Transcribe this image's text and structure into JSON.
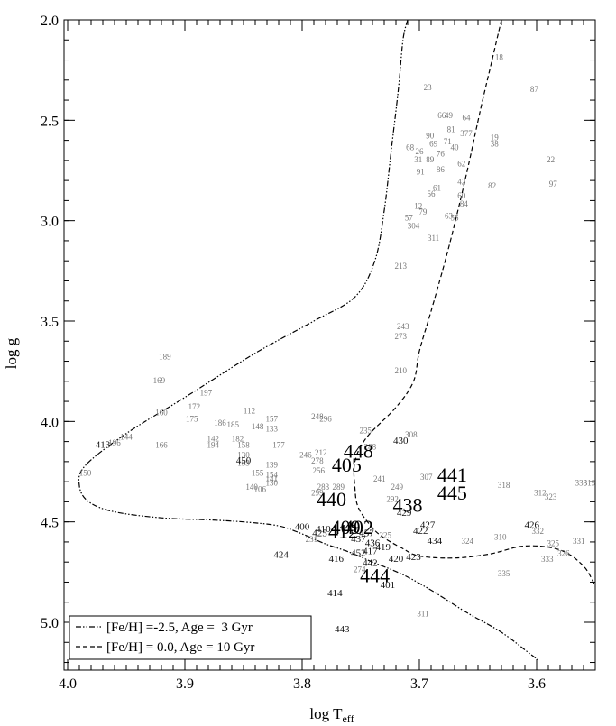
{
  "chart_data": {
    "type": "scatter",
    "xlabel_main": "log T",
    "xlabel_sub": "eff",
    "ylabel": "log g",
    "xlim": [
      4.0,
      3.55
    ],
    "ylim": [
      2.0,
      5.2
    ],
    "x_ticks": [
      "4.0",
      "3.9",
      "3.8",
      "3.7",
      "3.6"
    ],
    "x_tick_values": [
      4.0,
      3.9,
      3.8,
      3.7,
      3.6
    ],
    "y_ticks": [
      "2.0",
      "2.5",
      "3.0",
      "3.5",
      "4.0",
      "4.5",
      "5.0"
    ],
    "y_tick_values": [
      2.0,
      2.5,
      3.0,
      3.5,
      4.0,
      4.5,
      5.0
    ],
    "x_minor_step": 0.01,
    "y_minor_step": 0.1,
    "legend": {
      "placement": "bottom-left",
      "entries": [
        {
          "label": "[Fe/H] =-2.5, Age =  3 Gyr",
          "style": "dash-dot"
        },
        {
          "label": "[Fe/H] = 0.0, Age = 10 Gyr",
          "style": "dashed"
        }
      ]
    },
    "isochrones": [
      {
        "style": "dash-dot",
        "points": [
          [
            3.71,
            2.0
          ],
          [
            3.714,
            2.1
          ],
          [
            3.718,
            2.35
          ],
          [
            3.724,
            2.65
          ],
          [
            3.73,
            2.95
          ],
          [
            3.738,
            3.2
          ],
          [
            3.755,
            3.38
          ],
          [
            3.79,
            3.5
          ],
          [
            3.84,
            3.66
          ],
          [
            3.9,
            3.88
          ],
          [
            3.95,
            4.06
          ],
          [
            3.985,
            4.22
          ],
          [
            3.99,
            4.32
          ],
          [
            3.982,
            4.4
          ],
          [
            3.96,
            4.45
          ],
          [
            3.92,
            4.48
          ],
          [
            3.88,
            4.49
          ],
          [
            3.85,
            4.5
          ],
          [
            3.82,
            4.52
          ],
          [
            3.8,
            4.56
          ],
          [
            3.78,
            4.61
          ],
          [
            3.76,
            4.65
          ],
          [
            3.74,
            4.7
          ],
          [
            3.715,
            4.76
          ],
          [
            3.69,
            4.84
          ],
          [
            3.66,
            4.95
          ],
          [
            3.63,
            5.05
          ],
          [
            3.605,
            5.16
          ],
          [
            3.598,
            5.19
          ]
        ]
      },
      {
        "style": "dashed",
        "points": [
          [
            3.63,
            2.0
          ],
          [
            3.638,
            2.2
          ],
          [
            3.648,
            2.45
          ],
          [
            3.658,
            2.72
          ],
          [
            3.668,
            2.97
          ],
          [
            3.678,
            3.2
          ],
          [
            3.69,
            3.45
          ],
          [
            3.7,
            3.65
          ],
          [
            3.705,
            3.8
          ],
          [
            3.72,
            3.93
          ],
          [
            3.745,
            4.08
          ],
          [
            3.755,
            4.2
          ],
          [
            3.755,
            4.33
          ],
          [
            3.752,
            4.43
          ],
          [
            3.74,
            4.53
          ],
          [
            3.73,
            4.58
          ],
          [
            3.715,
            4.63
          ],
          [
            3.7,
            4.67
          ],
          [
            3.67,
            4.68
          ],
          [
            3.64,
            4.66
          ],
          [
            3.61,
            4.62
          ],
          [
            3.58,
            4.64
          ],
          [
            3.56,
            4.72
          ],
          [
            3.55,
            4.82
          ]
        ]
      }
    ],
    "labels_big": [
      {
        "text": "448",
        "x": 3.752,
        "y": 4.18
      },
      {
        "text": "405",
        "x": 3.762,
        "y": 4.25
      },
      {
        "text": "440",
        "x": 3.775,
        "y": 4.42
      },
      {
        "text": "438",
        "x": 3.71,
        "y": 4.45
      },
      {
        "text": "441",
        "x": 3.672,
        "y": 4.3
      },
      {
        "text": "445",
        "x": 3.672,
        "y": 4.39
      },
      {
        "text": "444",
        "x": 3.738,
        "y": 4.8
      },
      {
        "text": "409",
        "x": 3.763,
        "y": 4.56
      },
      {
        "text": "402",
        "x": 3.752,
        "y": 4.56
      },
      {
        "text": "412",
        "x": 3.765,
        "y": 4.58
      }
    ],
    "labels_medium": [
      {
        "text": "413",
        "x": 3.97,
        "y": 4.13
      },
      {
        "text": "430",
        "x": 3.716,
        "y": 4.11
      },
      {
        "text": "450",
        "x": 3.85,
        "y": 4.21
      },
      {
        "text": "400",
        "x": 3.8,
        "y": 4.54
      },
      {
        "text": "410",
        "x": 3.782,
        "y": 4.55
      },
      {
        "text": "425",
        "x": 3.785,
        "y": 4.57
      },
      {
        "text": "416",
        "x": 3.771,
        "y": 4.7
      },
      {
        "text": "424",
        "x": 3.818,
        "y": 4.68
      },
      {
        "text": "414",
        "x": 3.772,
        "y": 4.87
      },
      {
        "text": "443",
        "x": 3.766,
        "y": 5.05
      },
      {
        "text": "429",
        "x": 3.713,
        "y": 4.47
      },
      {
        "text": "427",
        "x": 3.693,
        "y": 4.53
      },
      {
        "text": "422",
        "x": 3.699,
        "y": 4.56
      },
      {
        "text": "434",
        "x": 3.687,
        "y": 4.61
      },
      {
        "text": "423",
        "x": 3.705,
        "y": 4.69
      },
      {
        "text": "420",
        "x": 3.72,
        "y": 4.7
      },
      {
        "text": "442",
        "x": 3.742,
        "y": 4.72
      },
      {
        "text": "401",
        "x": 3.727,
        "y": 4.83
      },
      {
        "text": "426",
        "x": 3.604,
        "y": 4.53
      },
      {
        "text": "419",
        "x": 3.731,
        "y": 4.64
      },
      {
        "text": "437",
        "x": 3.752,
        "y": 4.6
      },
      {
        "text": "417",
        "x": 3.742,
        "y": 4.66
      },
      {
        "text": "436",
        "x": 3.74,
        "y": 4.62
      },
      {
        "text": "452",
        "x": 3.752,
        "y": 4.67
      },
      {
        "text": "457",
        "x": 3.745,
        "y": 4.57
      }
    ],
    "labels_small": [
      {
        "text": "18",
        "x": 3.632,
        "y": 2.2
      },
      {
        "text": "23",
        "x": 3.693,
        "y": 2.35
      },
      {
        "text": "87",
        "x": 3.602,
        "y": 2.36
      },
      {
        "text": "66",
        "x": 3.681,
        "y": 2.49
      },
      {
        "text": "49",
        "x": 3.675,
        "y": 2.49
      },
      {
        "text": "64",
        "x": 3.66,
        "y": 2.5
      },
      {
        "text": "81",
        "x": 3.673,
        "y": 2.56
      },
      {
        "text": "377",
        "x": 3.66,
        "y": 2.58
      },
      {
        "text": "90",
        "x": 3.691,
        "y": 2.59
      },
      {
        "text": "19",
        "x": 3.636,
        "y": 2.6
      },
      {
        "text": "38",
        "x": 3.636,
        "y": 2.63
      },
      {
        "text": "68",
        "x": 3.708,
        "y": 2.65
      },
      {
        "text": "69",
        "x": 3.688,
        "y": 2.63
      },
      {
        "text": "71",
        "x": 3.676,
        "y": 2.62
      },
      {
        "text": "40",
        "x": 3.67,
        "y": 2.65
      },
      {
        "text": "26",
        "x": 3.7,
        "y": 2.67
      },
      {
        "text": "76",
        "x": 3.682,
        "y": 2.68
      },
      {
        "text": "22",
        "x": 3.588,
        "y": 2.71
      },
      {
        "text": "31",
        "x": 3.701,
        "y": 2.71
      },
      {
        "text": "89",
        "x": 3.691,
        "y": 2.71
      },
      {
        "text": "62",
        "x": 3.664,
        "y": 2.73
      },
      {
        "text": "86",
        "x": 3.682,
        "y": 2.76
      },
      {
        "text": "91",
        "x": 3.699,
        "y": 2.77
      },
      {
        "text": "42",
        "x": 3.664,
        "y": 2.82
      },
      {
        "text": "82",
        "x": 3.638,
        "y": 2.84
      },
      {
        "text": "97",
        "x": 3.586,
        "y": 2.83
      },
      {
        "text": "61",
        "x": 3.685,
        "y": 2.85
      },
      {
        "text": "56",
        "x": 3.69,
        "y": 2.88
      },
      {
        "text": "60",
        "x": 3.664,
        "y": 2.89
      },
      {
        "text": "84",
        "x": 3.662,
        "y": 2.93
      },
      {
        "text": "12",
        "x": 3.701,
        "y": 2.94
      },
      {
        "text": "79",
        "x": 3.697,
        "y": 2.97
      },
      {
        "text": "63",
        "x": 3.675,
        "y": 2.99
      },
      {
        "text": "55",
        "x": 3.67,
        "y": 3.0
      },
      {
        "text": "57",
        "x": 3.709,
        "y": 3.0
      },
      {
        "text": "304",
        "x": 3.705,
        "y": 3.04
      },
      {
        "text": "311",
        "x": 3.688,
        "y": 3.1
      },
      {
        "text": "213",
        "x": 3.716,
        "y": 3.24
      },
      {
        "text": "243",
        "x": 3.714,
        "y": 3.54
      },
      {
        "text": "273",
        "x": 3.716,
        "y": 3.59
      },
      {
        "text": "210",
        "x": 3.716,
        "y": 3.76
      },
      {
        "text": "189",
        "x": 3.917,
        "y": 3.69
      },
      {
        "text": "169",
        "x": 3.922,
        "y": 3.81
      },
      {
        "text": "197",
        "x": 3.882,
        "y": 3.87
      },
      {
        "text": "172",
        "x": 3.892,
        "y": 3.94
      },
      {
        "text": "160",
        "x": 3.92,
        "y": 3.97
      },
      {
        "text": "175",
        "x": 3.894,
        "y": 4.0
      },
      {
        "text": "186",
        "x": 3.87,
        "y": 4.02
      },
      {
        "text": "185",
        "x": 3.859,
        "y": 4.03
      },
      {
        "text": "112",
        "x": 3.845,
        "y": 3.96
      },
      {
        "text": "157",
        "x": 3.826,
        "y": 4.0
      },
      {
        "text": "148",
        "x": 3.838,
        "y": 4.04
      },
      {
        "text": "133",
        "x": 3.826,
        "y": 4.05
      },
      {
        "text": "248",
        "x": 3.787,
        "y": 3.99
      },
      {
        "text": "296",
        "x": 3.78,
        "y": 4.0
      },
      {
        "text": "235",
        "x": 3.746,
        "y": 4.06
      },
      {
        "text": "308",
        "x": 3.707,
        "y": 4.08
      },
      {
        "text": "144",
        "x": 3.95,
        "y": 4.09
      },
      {
        "text": "196",
        "x": 3.96,
        "y": 4.12
      },
      {
        "text": "166",
        "x": 3.92,
        "y": 4.13
      },
      {
        "text": "142",
        "x": 3.876,
        "y": 4.1
      },
      {
        "text": "194",
        "x": 3.876,
        "y": 4.13
      },
      {
        "text": "182",
        "x": 3.855,
        "y": 4.1
      },
      {
        "text": "158",
        "x": 3.85,
        "y": 4.13
      },
      {
        "text": "177",
        "x": 3.82,
        "y": 4.13
      },
      {
        "text": "288",
        "x": 3.742,
        "y": 4.14
      },
      {
        "text": "246",
        "x": 3.797,
        "y": 4.18
      },
      {
        "text": "212",
        "x": 3.784,
        "y": 4.17
      },
      {
        "text": "278",
        "x": 3.787,
        "y": 4.21
      },
      {
        "text": "256",
        "x": 3.786,
        "y": 4.26
      },
      {
        "text": "150",
        "x": 3.985,
        "y": 4.27
      },
      {
        "text": "130",
        "x": 3.85,
        "y": 4.18
      },
      {
        "text": "153",
        "x": 3.85,
        "y": 4.22
      },
      {
        "text": "155",
        "x": 3.838,
        "y": 4.27
      },
      {
        "text": "154",
        "x": 3.826,
        "y": 4.28
      },
      {
        "text": "139",
        "x": 3.826,
        "y": 4.23
      },
      {
        "text": "141",
        "x": 3.826,
        "y": 4.3
      },
      {
        "text": "130",
        "x": 3.826,
        "y": 4.32
      },
      {
        "text": "140",
        "x": 3.843,
        "y": 4.34
      },
      {
        "text": "106",
        "x": 3.836,
        "y": 4.35
      },
      {
        "text": "307",
        "x": 3.694,
        "y": 4.29
      },
      {
        "text": "318",
        "x": 3.628,
        "y": 4.33
      },
      {
        "text": "333",
        "x": 3.562,
        "y": 4.32
      },
      {
        "text": "319",
        "x": 3.555,
        "y": 4.32
      },
      {
        "text": "283",
        "x": 3.782,
        "y": 4.34
      },
      {
        "text": "289",
        "x": 3.769,
        "y": 4.34
      },
      {
        "text": "299",
        "x": 3.787,
        "y": 4.37
      },
      {
        "text": "241",
        "x": 3.734,
        "y": 4.3
      },
      {
        "text": "249",
        "x": 3.719,
        "y": 4.34
      },
      {
        "text": "292",
        "x": 3.723,
        "y": 4.4
      },
      {
        "text": "312",
        "x": 3.597,
        "y": 4.37
      },
      {
        "text": "323",
        "x": 3.588,
        "y": 4.39
      },
      {
        "text": "310",
        "x": 3.631,
        "y": 4.59
      },
      {
        "text": "324",
        "x": 3.659,
        "y": 4.61
      },
      {
        "text": "332",
        "x": 3.599,
        "y": 4.56
      },
      {
        "text": "331",
        "x": 3.564,
        "y": 4.61
      },
      {
        "text": "325",
        "x": 3.586,
        "y": 4.62
      },
      {
        "text": "326",
        "x": 3.577,
        "y": 4.67
      },
      {
        "text": "333",
        "x": 3.591,
        "y": 4.7
      },
      {
        "text": "335",
        "x": 3.628,
        "y": 4.77
      },
      {
        "text": "311",
        "x": 3.697,
        "y": 4.97
      },
      {
        "text": "274",
        "x": 3.751,
        "y": 4.75
      },
      {
        "text": "231",
        "x": 3.792,
        "y": 4.6
      },
      {
        "text": "225",
        "x": 3.729,
        "y": 4.58
      }
    ]
  }
}
